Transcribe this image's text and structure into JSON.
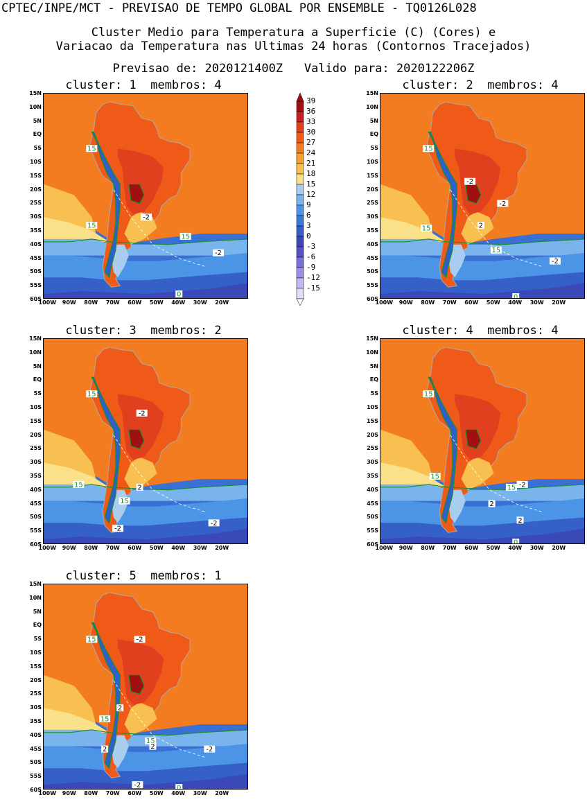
{
  "header": {
    "line1": "CPTEC/INPE/MCT - PREVISAO DE TEMPO GLOBAL POR ENSEMBLE - TQ0126L028",
    "line2": "Cluster Medio para Temperatura a Superficie (C) (Cores) e",
    "line3": "Variacao da Temperatura nas Ultimas 24 horas (Contornos Tracejados)",
    "line4": "Previsao de: 2020121400Z   Valido para: 2020122206Z"
  },
  "lat_labels": [
    "15N",
    "10N",
    "5N",
    "EQ",
    "5S",
    "10S",
    "15S",
    "20S",
    "25S",
    "30S",
    "35S",
    "40S",
    "45S",
    "50S",
    "55S",
    "60S"
  ],
  "lon_labels": [
    "100W",
    "90W",
    "80W",
    "70W",
    "60W",
    "50W",
    "40W",
    "30W",
    "20W"
  ],
  "colorbar": {
    "labels": [
      "39",
      "36",
      "33",
      "30",
      "27",
      "24",
      "21",
      "18",
      "15",
      "12",
      "9",
      "6",
      "3",
      "0",
      "-3",
      "-6",
      "-9",
      "-12",
      "-15"
    ],
    "colors": [
      "#a01010",
      "#c62020",
      "#e0401e",
      "#f05a18",
      "#f47c20",
      "#f7a030",
      "#f8c050",
      "#fbe08a",
      "#a8cdee",
      "#7ab4ec",
      "#4c95e6",
      "#3a78d8",
      "#3460c8",
      "#3a48b8",
      "#5a50c8",
      "#7a70d8",
      "#9c90e4",
      "#c0b8f0",
      "#e2dcfa"
    ]
  },
  "panels": [
    {
      "title": "cluster: 1  membros: 4",
      "labels": [
        {
          "t": "15",
          "lat": -5,
          "lon": -80,
          "c": "green"
        },
        {
          "t": "15",
          "lat": -33,
          "lon": -80,
          "c": "green"
        },
        {
          "t": "15",
          "lat": -37,
          "lon": -37,
          "c": "green"
        },
        {
          "t": "0",
          "lat": -58,
          "lon": -40,
          "c": "green"
        },
        {
          "t": "-2",
          "lat": -30,
          "lon": -55,
          "c": "black"
        },
        {
          "t": "-2",
          "lat": -43,
          "lon": -22,
          "c": "black"
        }
      ]
    },
    {
      "title": "cluster: 2  membros: 4",
      "labels": [
        {
          "t": "15",
          "lat": -5,
          "lon": -80,
          "c": "green"
        },
        {
          "t": "15",
          "lat": -34,
          "lon": -81,
          "c": "green"
        },
        {
          "t": "15",
          "lat": -42,
          "lon": -49,
          "c": "green"
        },
        {
          "t": "0",
          "lat": -59,
          "lon": -40,
          "c": "green"
        },
        {
          "t": "-2",
          "lat": -17,
          "lon": -61,
          "c": "black"
        },
        {
          "t": "-2",
          "lat": -25,
          "lon": -46,
          "c": "black"
        },
        {
          "t": "2",
          "lat": -33,
          "lon": -56,
          "c": "black"
        },
        {
          "t": "-2",
          "lat": -46,
          "lon": -22,
          "c": "black"
        }
      ]
    },
    {
      "title": "cluster: 3  membros: 2",
      "labels": [
        {
          "t": "15",
          "lat": -5,
          "lon": -80,
          "c": "green"
        },
        {
          "t": "15",
          "lat": -38,
          "lon": -86,
          "c": "green"
        },
        {
          "t": "15",
          "lat": -44,
          "lon": -65,
          "c": "green"
        },
        {
          "t": "-2",
          "lat": -12,
          "lon": -57,
          "c": "black"
        },
        {
          "t": "2",
          "lat": -39,
          "lon": -58,
          "c": "black"
        },
        {
          "t": "-2",
          "lat": -54,
          "lon": -68,
          "c": "black"
        },
        {
          "t": "-2",
          "lat": -52,
          "lon": -24,
          "c": "black"
        }
      ]
    },
    {
      "title": "cluster: 4  membros: 4",
      "labels": [
        {
          "t": "15",
          "lat": -5,
          "lon": -80,
          "c": "green"
        },
        {
          "t": "15",
          "lat": -35,
          "lon": -77,
          "c": "green"
        },
        {
          "t": "15",
          "lat": -39,
          "lon": -42,
          "c": "green"
        },
        {
          "t": "-2",
          "lat": -38,
          "lon": -37,
          "c": "black"
        },
        {
          "t": "2",
          "lat": -45,
          "lon": -51,
          "c": "black"
        },
        {
          "t": "2",
          "lat": -51,
          "lon": -38,
          "c": "black"
        },
        {
          "t": "0",
          "lat": -59,
          "lon": -40,
          "c": "green"
        }
      ]
    },
    {
      "title": "cluster: 5  membros: 1",
      "labels": [
        {
          "t": "15",
          "lat": -5,
          "lon": -80,
          "c": "green"
        },
        {
          "t": "15",
          "lat": -34,
          "lon": -74,
          "c": "green"
        },
        {
          "t": "15",
          "lat": -42,
          "lon": -53,
          "c": "green"
        },
        {
          "t": "-2",
          "lat": -5,
          "lon": -58,
          "c": "black"
        },
        {
          "t": "2",
          "lat": -30,
          "lon": -67,
          "c": "black"
        },
        {
          "t": "2",
          "lat": -44,
          "lon": -52,
          "c": "black"
        },
        {
          "t": "2",
          "lat": -45,
          "lon": -74,
          "c": "black"
        },
        {
          "t": "-2",
          "lat": -45,
          "lon": -26,
          "c": "black"
        },
        {
          "t": "-2",
          "lat": -58,
          "lon": -59,
          "c": "black"
        },
        {
          "t": "0",
          "lat": -59,
          "lon": -40,
          "c": "green"
        }
      ]
    }
  ]
}
